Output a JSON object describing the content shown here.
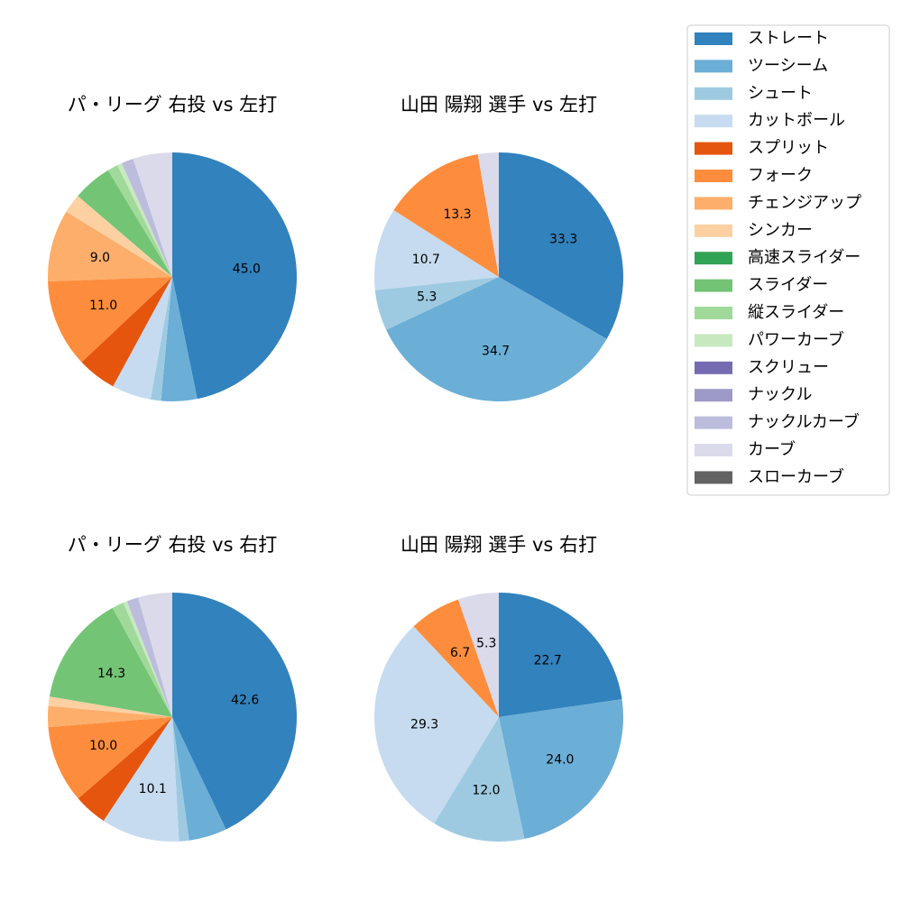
{
  "chart_data": [
    {
      "type": "pie",
      "title": "パ・リーグ 右投 vs 左打",
      "values": [
        45.0,
        4.5,
        1.3,
        4.9,
        4.9,
        11.0,
        9.0,
        2.4,
        0,
        4.9,
        1.3,
        0.6,
        0,
        0,
        1.5,
        4.9,
        0
      ],
      "value_labels": [
        "45.0",
        null,
        null,
        null,
        null,
        "11.0",
        "9.0",
        null,
        null,
        null,
        null,
        null,
        null,
        null,
        null,
        null,
        null
      ]
    },
    {
      "type": "pie",
      "title": "山田 陽翔 選手 vs 左打",
      "values": [
        33.3,
        34.7,
        5.3,
        10.7,
        0,
        13.3,
        0,
        0,
        0,
        0,
        0,
        0,
        0,
        0,
        0,
        2.7,
        0
      ],
      "value_labels": [
        "33.3",
        "34.7",
        "5.3",
        "10.7",
        null,
        "13.3",
        null,
        null,
        null,
        null,
        null,
        null,
        null,
        null,
        null,
        null,
        null
      ]
    },
    {
      "type": "pie",
      "title": "パ・リーグ 右投 vs 右打",
      "values": [
        42.6,
        4.9,
        1.3,
        10.1,
        4.3,
        10.0,
        2.7,
        1.2,
        0,
        14.3,
        1.5,
        0.5,
        0,
        0,
        1.5,
        4.4,
        0
      ],
      "value_labels": [
        "42.6",
        null,
        null,
        "10.1",
        null,
        "10.0",
        null,
        null,
        null,
        "14.3",
        null,
        null,
        null,
        null,
        null,
        null,
        null
      ]
    },
    {
      "type": "pie",
      "title": "山田 陽翔 選手 vs 右打",
      "values": [
        22.7,
        24.0,
        12.0,
        29.3,
        0,
        6.7,
        0,
        0,
        0,
        0,
        0,
        0,
        0,
        0,
        0,
        5.3,
        0
      ],
      "value_labels": [
        "22.7",
        "24.0",
        "12.0",
        "29.3",
        null,
        "6.7",
        null,
        null,
        null,
        null,
        null,
        null,
        null,
        null,
        null,
        "5.3",
        null
      ]
    }
  ],
  "legend": {
    "labels": [
      "ストレート",
      "ツーシーム",
      "シュート",
      "カットボール",
      "スプリット",
      "フォーク",
      "チェンジアップ",
      "シンカー",
      "高速スライダー",
      "スライダー",
      "縦スライダー",
      "パワーカーブ",
      "スクリュー",
      "ナックル",
      "ナックルカーブ",
      "カーブ",
      "スローカーブ"
    ],
    "colors": [
      "#3182bd",
      "#6baed6",
      "#9ecae1",
      "#c6dbef",
      "#e6550d",
      "#fd8d3c",
      "#fdae6b",
      "#fdd0a2",
      "#31a354",
      "#74c476",
      "#a1d99b",
      "#c7e9c0",
      "#756bb1",
      "#9e9ac8",
      "#bcbddc",
      "#dadaeb",
      "#636363"
    ]
  }
}
